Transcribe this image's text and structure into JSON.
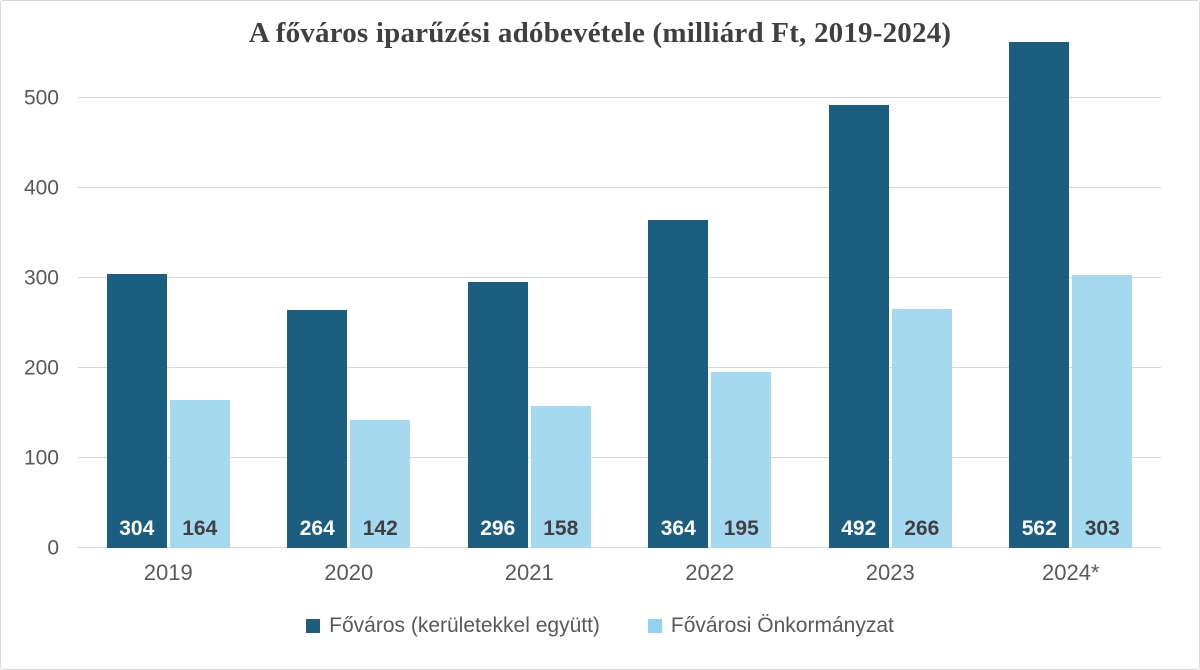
{
  "chart_data": {
    "type": "bar",
    "title": "A főváros iparűzési adóbevétele (milliárd Ft, 2019-2024)",
    "categories": [
      "2019",
      "2020",
      "2021",
      "2022",
      "2023",
      "2024*"
    ],
    "series": [
      {
        "name": "Főváros (kerületekkel együtt)",
        "color": "#1b5e7f",
        "value_label_color": "#ffffff",
        "values": [
          304,
          264,
          296,
          364,
          492,
          562
        ]
      },
      {
        "name": "Fővárosi Önkormányzat",
        "color": "#a5d9f0",
        "legend_swatch_color": "#8fd2f2",
        "value_label_color": "#404040",
        "values": [
          164,
          142,
          158,
          195,
          266,
          303
        ]
      }
    ],
    "yticks": [
      0,
      100,
      200,
      300,
      400,
      500
    ],
    "ylim": [
      0,
      562
    ],
    "xlabel": "",
    "ylabel": "",
    "grid": true,
    "legend_position": "bottom",
    "value_labels_shown": true,
    "gridline_color": "#d9d9d9",
    "axis_text_color": "#595959",
    "title_color": "#404040"
  }
}
